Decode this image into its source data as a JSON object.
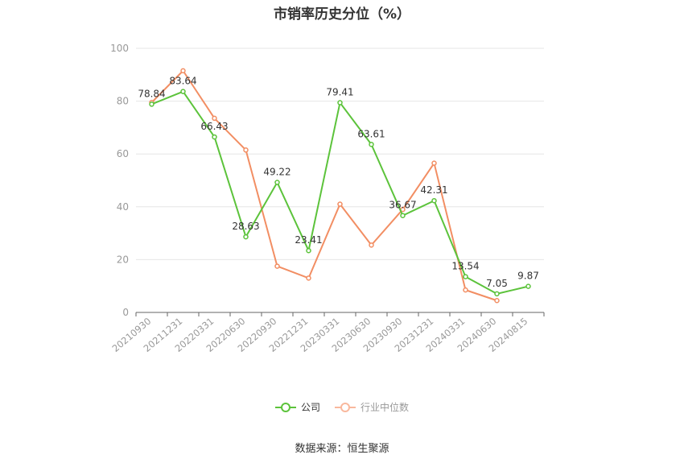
{
  "chart_data": {
    "type": "line",
    "title": "市销率历史分位（%）",
    "categories": [
      "20210930",
      "20211231",
      "20220331",
      "20220630",
      "20220930",
      "20221231",
      "20230331",
      "20230630",
      "20230930",
      "20231231",
      "20240331",
      "20240630",
      "20240815"
    ],
    "series": [
      {
        "name": "公司",
        "color": "#5cc33b",
        "values": [
          78.84,
          83.64,
          66.43,
          28.63,
          49.22,
          23.41,
          79.41,
          63.61,
          36.67,
          42.31,
          13.54,
          7.05,
          9.87
        ],
        "labels": [
          "78.84",
          "83.64",
          "66.43",
          "28.63",
          "49.22",
          "23.41",
          "79.41",
          "63.61",
          "36.67",
          "42.31",
          "13.54",
          "7.05",
          "9.87"
        ]
      },
      {
        "name": "行业中位数",
        "color": "#f28e63",
        "values": [
          79.5,
          91.5,
          73.5,
          61.5,
          17.5,
          13.0,
          41.0,
          25.5,
          39.0,
          56.5,
          8.5,
          4.5,
          null
        ]
      }
    ],
    "ylim": [
      0,
      100
    ],
    "yticks": [
      0,
      20,
      40,
      60,
      80,
      100
    ],
    "grid": true,
    "legend": "bottom-center"
  },
  "source_label": "数据来源：恒生聚源"
}
